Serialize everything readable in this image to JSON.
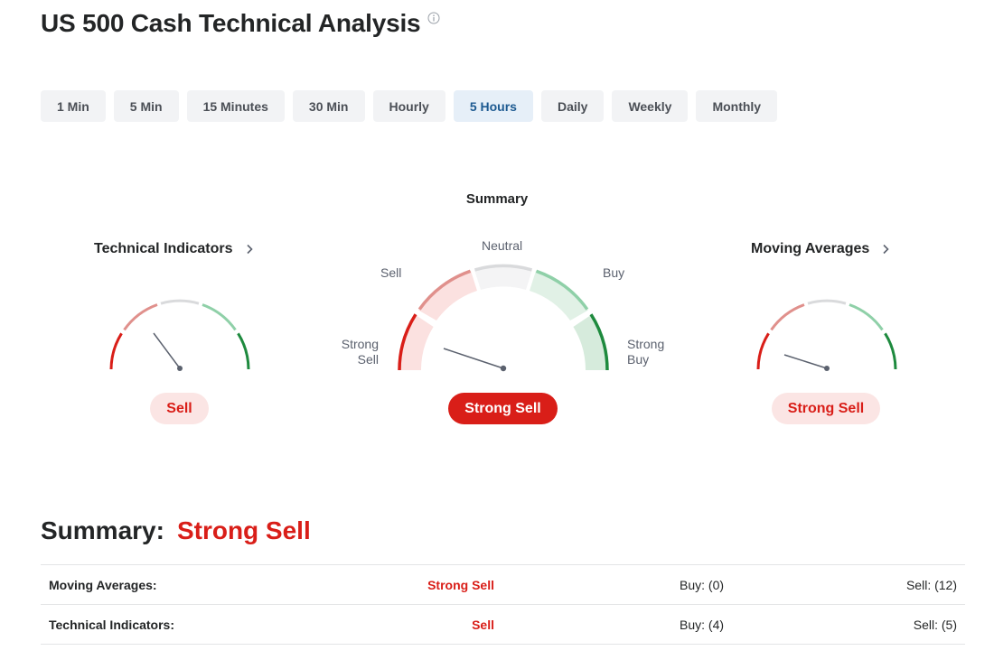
{
  "header": {
    "title": "US 500 Cash Technical Analysis",
    "info_icon": "info-icon"
  },
  "timeframes": {
    "items": [
      "1 Min",
      "5 Min",
      "15 Minutes",
      "30 Min",
      "Hourly",
      "5 Hours",
      "Daily",
      "Weekly",
      "Monthly"
    ],
    "active": "5 Hours"
  },
  "gauges": {
    "summary": {
      "title": "Summary",
      "labels": {
        "neutral": "Neutral",
        "sell": "Sell",
        "buy": "Buy",
        "strong_sell_1": "Strong",
        "strong_sell_2": "Sell",
        "strong_buy_1": "Strong",
        "strong_buy_2": "Buy"
      },
      "verdict": "Strong Sell"
    },
    "technical_indicators": {
      "title": "Technical Indicators",
      "verdict": "Sell"
    },
    "moving_averages": {
      "title": "Moving Averages",
      "verdict": "Strong Sell"
    }
  },
  "summary": {
    "label": "Summary:",
    "verdict": "Strong Sell",
    "rows": [
      {
        "name": "Moving Averages:",
        "value": "Strong Sell",
        "buy": "Buy: (0)",
        "sell": "Sell: (12)"
      },
      {
        "name": "Technical Indicators:",
        "value": "Sell",
        "buy": "Buy: (4)",
        "sell": "Sell: (5)"
      }
    ]
  },
  "colors": {
    "strong_sell": "#d91e18",
    "sell": "#e0908c",
    "neutral": "#d9dadc",
    "buy": "#8fd0a8",
    "strong_buy": "#1e8a3e",
    "active_tab_bg": "#e6eff8",
    "active_tab_text": "#1d5a91"
  }
}
